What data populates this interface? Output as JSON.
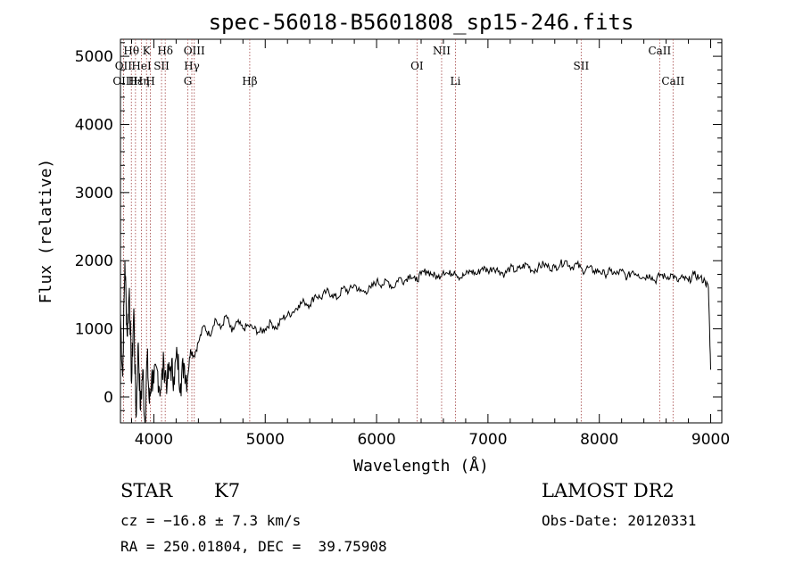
{
  "chart_data": {
    "type": "line",
    "title": "spec-56018-B5601808_sp15-246.fits",
    "xlabel": "Wavelength (Å)",
    "ylabel": "Flux (relative)",
    "xlim": [
      3700,
      9100
    ],
    "ylim": [
      -380,
      5250
    ],
    "xticks": [
      4000,
      5000,
      6000,
      7000,
      8000,
      9000
    ],
    "yticks": [
      0,
      1000,
      2000,
      3000,
      4000,
      5000
    ],
    "series": [
      {
        "x": [
          3700,
          3720,
          3740,
          3760,
          3780,
          3800,
          3820,
          3840,
          3860,
          3880,
          3900,
          3920,
          3940,
          3960,
          3980,
          4000,
          4030,
          4060,
          4090,
          4120,
          4150,
          4180,
          4210,
          4240,
          4270,
          4300,
          4330,
          4360,
          4400,
          4450,
          4500,
          4550,
          4600,
          4650,
          4700,
          4750,
          4800,
          4850,
          4900,
          4950,
          5000,
          5050,
          5100,
          5150,
          5200,
          5250,
          5300,
          5350,
          5400,
          5450,
          5500,
          5550,
          5600,
          5650,
          5700,
          5750,
          5800,
          5850,
          5900,
          5950,
          6000,
          6050,
          6100,
          6150,
          6200,
          6250,
          6300,
          6350,
          6400,
          6450,
          6500,
          6550,
          6600,
          6650,
          6700,
          6750,
          6800,
          6850,
          6900,
          6950,
          7000,
          7050,
          7100,
          7150,
          7200,
          7250,
          7300,
          7350,
          7400,
          7450,
          7500,
          7550,
          7600,
          7650,
          7700,
          7750,
          7800,
          7850,
          7900,
          7950,
          8000,
          8050,
          8100,
          8150,
          8200,
          8250,
          8300,
          8350,
          8400,
          8450,
          8500,
          8550,
          8600,
          8650,
          8700,
          8750,
          8800,
          8850,
          8900,
          8950,
          8980,
          9000
        ],
        "y": [
          1200,
          300,
          2000,
          900,
          1600,
          200,
          1300,
          -300,
          800,
          -200,
          400,
          -400,
          600,
          -100,
          300,
          200,
          400,
          100,
          500,
          200,
          450,
          300,
          600,
          200,
          500,
          250,
          700,
          600,
          800,
          1050,
          900,
          1150,
          1000,
          1200,
          950,
          1100,
          1000,
          1050,
          1000,
          950,
          1000,
          1100,
          1000,
          1150,
          1200,
          1250,
          1350,
          1400,
          1350,
          1500,
          1450,
          1550,
          1500,
          1450,
          1600,
          1550,
          1650,
          1550,
          1550,
          1600,
          1700,
          1650,
          1700,
          1600,
          1750,
          1700,
          1800,
          1700,
          1800,
          1850,
          1800,
          1750,
          1850,
          1800,
          1850,
          1750,
          1800,
          1850,
          1800,
          1900,
          1850,
          1900,
          1850,
          1800,
          1900,
          1850,
          1900,
          1950,
          1850,
          1900,
          1950,
          1900,
          1900,
          1950,
          2000,
          1900,
          1950,
          1850,
          1900,
          1850,
          1850,
          1800,
          1850,
          1800,
          1850,
          1750,
          1850,
          1800,
          1750,
          1800,
          1700,
          1800,
          1750,
          1800,
          1700,
          1750,
          1700,
          1800,
          1750,
          1700,
          1600,
          400
        ]
      }
    ],
    "lines": [
      {
        "label": "Hθ",
        "x": 3798,
        "row": 1
      },
      {
        "label": "OII",
        "x": 3727,
        "row": 2
      },
      {
        "label": "OIII",
        "x": 3727,
        "row": 3
      },
      {
        "label": "Hε",
        "x": 3835,
        "row": 3
      },
      {
        "label": "HeI",
        "x": 3889,
        "row": 2
      },
      {
        "label": "Hη",
        "x": 3889,
        "row": 3
      },
      {
        "label": "K",
        "x": 3934,
        "row": 1
      },
      {
        "label": "H",
        "x": 3969,
        "row": 3
      },
      {
        "label": "SII",
        "x": 4069,
        "row": 2
      },
      {
        "label": "Hδ",
        "x": 4102,
        "row": 1
      },
      {
        "label": "OIII",
        "x": 4363,
        "row": 1
      },
      {
        "label": "Hγ",
        "x": 4341,
        "row": 2
      },
      {
        "label": "G",
        "x": 4305,
        "row": 3
      },
      {
        "label": "Hβ",
        "x": 4861,
        "row": 3
      },
      {
        "label": "OI",
        "x": 6363,
        "row": 2
      },
      {
        "label": "NII",
        "x": 6584,
        "row": 1
      },
      {
        "label": "Li",
        "x": 6708,
        "row": 3
      },
      {
        "label": "SII",
        "x": 7837,
        "row": 2
      },
      {
        "label": "CaII",
        "x": 8542,
        "row": 1
      },
      {
        "label": "CaII",
        "x": 8662,
        "row": 3
      }
    ]
  },
  "info": {
    "object_type": "STAR",
    "subclass": "K7",
    "survey": "LAMOST DR2",
    "redshift": "cz = −16.8 ± 7.3 km/s",
    "obs_date": "Obs-Date: 20120331",
    "coords": "RA = 250.01804, DEC =  39.75908"
  }
}
